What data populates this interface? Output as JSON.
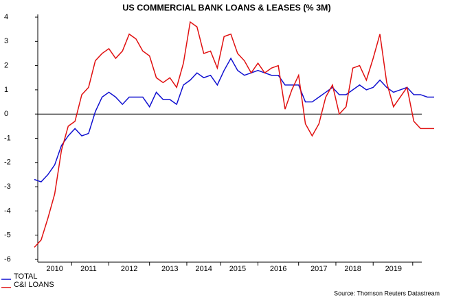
{
  "chart_data": {
    "type": "line",
    "title": "US COMMERCIAL BANK LOANS & LEASES (% 3M)",
    "source": "Source: Thomson Reuters Datastream",
    "categories": [
      null,
      null,
      null,
      "2010",
      null,
      null,
      null,
      null,
      "2011",
      null,
      null,
      null,
      null,
      null,
      "2012",
      null,
      null,
      null,
      null,
      null,
      "2013",
      null,
      null,
      null,
      null,
      "2014",
      null,
      null,
      null,
      null,
      "2015",
      null,
      null,
      null,
      null,
      null,
      "2016",
      null,
      null,
      null,
      null,
      null,
      "2017",
      null,
      null,
      null,
      null,
      "2018",
      null,
      null,
      null,
      null,
      null,
      "2019",
      null,
      null,
      null,
      null,
      null,
      null
    ],
    "series": [
      {
        "name": "TOTAL",
        "color": "#1010d0",
        "values": [
          -2.7,
          -2.8,
          -2.5,
          -2.1,
          -1.3,
          -0.9,
          -0.6,
          -0.9,
          -0.8,
          0.1,
          0.7,
          0.9,
          0.7,
          0.4,
          0.7,
          0.7,
          0.7,
          0.3,
          0.9,
          0.6,
          0.6,
          0.4,
          1.2,
          1.4,
          1.7,
          1.5,
          1.6,
          1.2,
          1.8,
          2.3,
          1.8,
          1.6,
          1.7,
          1.8,
          1.7,
          1.6,
          1.6,
          1.2,
          1.2,
          1.2,
          0.5,
          0.5,
          0.7,
          0.9,
          1.1,
          0.8,
          0.8,
          1.0,
          1.2,
          1.0,
          1.1,
          1.4,
          1.1,
          0.9,
          1.0,
          1.1,
          0.8,
          0.8,
          0.7,
          0.7
        ]
      },
      {
        "name": "C&I LOANS",
        "color": "#e01010",
        "values": [
          -5.5,
          -5.2,
          -4.3,
          -3.3,
          -1.5,
          -0.5,
          -0.3,
          0.8,
          1.1,
          2.2,
          2.5,
          2.7,
          2.3,
          2.6,
          3.3,
          3.1,
          2.6,
          2.4,
          1.5,
          1.3,
          1.5,
          1.1,
          2.1,
          3.8,
          3.6,
          2.5,
          2.6,
          1.9,
          3.2,
          3.3,
          2.5,
          2.2,
          1.7,
          2.1,
          1.7,
          1.9,
          2.0,
          0.2,
          1.0,
          1.6,
          -0.4,
          -0.9,
          -0.4,
          0.7,
          1.2,
          0.0,
          0.3,
          1.9,
          2.0,
          1.4,
          2.3,
          3.3,
          1.3,
          0.3,
          0.7,
          1.1,
          -0.3,
          -0.6,
          -0.6,
          -0.6
        ]
      }
    ],
    "ylim": [
      -6,
      4
    ],
    "yticks": [
      -6,
      -5,
      -4,
      -3,
      -2,
      -1,
      0,
      1,
      2,
      3,
      4
    ]
  }
}
